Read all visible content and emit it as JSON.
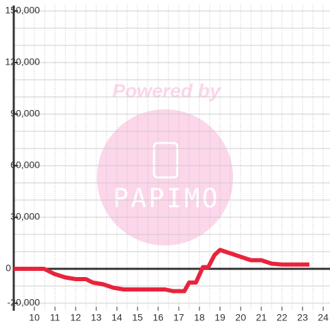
{
  "chart_data": {
    "type": "line",
    "watermark": {
      "top": "Powered by",
      "brand": "PAPIMO"
    },
    "x": [
      9,
      10.47,
      10.97,
      11.5,
      12.0,
      12.5,
      12.83,
      13.33,
      13.83,
      14.33,
      16.33,
      16.73,
      17.27,
      17.5,
      17.83,
      18.17,
      18.43,
      18.73,
      19.0,
      19.5,
      20.0,
      20.5,
      21.0,
      21.5,
      22.0,
      23.33
    ],
    "series": [
      {
        "color": "#e8243c",
        "values": [
          0,
          0,
          -3000,
          -5000,
          -6000,
          -6000,
          -8000,
          -9000,
          -11000,
          -12000,
          -12000,
          -13000,
          -13000,
          -8000,
          -8000,
          1000,
          1000,
          8000,
          11000,
          9000,
          7000,
          5000,
          5000,
          3000,
          2500,
          2500
        ]
      }
    ],
    "xlim": [
      9,
      24.33
    ],
    "ylim": [
      -23000,
      150000
    ],
    "xticks": [
      10,
      11,
      12,
      13,
      14,
      15,
      16,
      17,
      18,
      19,
      20,
      21,
      22,
      23,
      24
    ],
    "yticks": [
      {
        "value": -20000,
        "label": "-20,000"
      },
      0,
      {
        "value": 30000,
        "label": "30,000"
      },
      {
        "value": 60000,
        "label": "60,000"
      },
      {
        "value": 90000,
        "label": "90,000"
      },
      {
        "value": 120000,
        "label": "120,000"
      },
      {
        "value": 150000,
        "label": "150,000"
      }
    ],
    "xgrid": [
      9.5,
      10,
      10.5,
      11,
      11.5,
      12,
      12.5,
      13,
      13.5,
      14,
      14.5,
      15,
      15.5,
      16,
      16.5,
      17,
      17.5,
      18,
      18.5,
      19,
      19.5,
      20,
      20.5,
      21,
      21.5,
      22,
      22.5,
      23,
      23.5,
      24
    ],
    "ygrid": [
      -20000,
      -10000,
      10000,
      20000,
      30000,
      40000,
      50000,
      60000,
      70000,
      80000,
      90000,
      100000,
      110000,
      120000,
      130000,
      140000,
      150000
    ],
    "grid": true
  }
}
